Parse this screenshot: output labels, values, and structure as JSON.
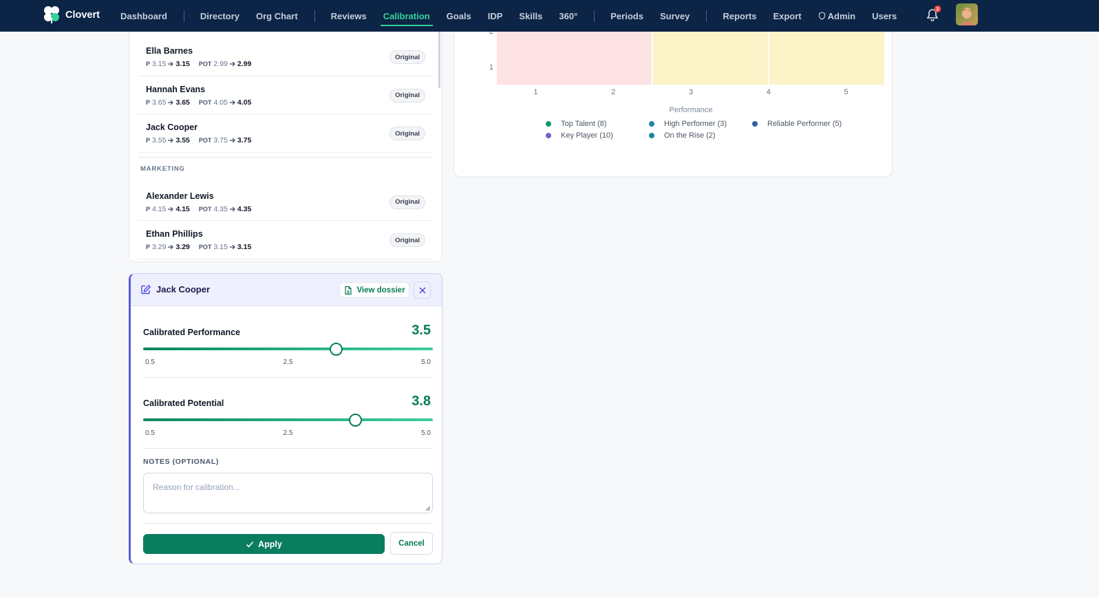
{
  "nav": {
    "brand": "Clovert",
    "groups": [
      [
        {
          "label": "Dashboard"
        }
      ],
      [
        {
          "label": "Directory"
        },
        {
          "label": "Org Chart"
        }
      ],
      [
        {
          "label": "Reviews"
        },
        {
          "label": "Calibration",
          "active": true
        },
        {
          "label": "Goals"
        },
        {
          "label": "IDP"
        },
        {
          "label": "Skills"
        },
        {
          "label": "360°"
        }
      ],
      [
        {
          "label": "Periods"
        },
        {
          "label": "Survey"
        }
      ],
      [
        {
          "label": "Reports"
        },
        {
          "label": "Export"
        },
        {
          "label": "Admin",
          "icon": "shield"
        },
        {
          "label": "Users"
        }
      ]
    ],
    "notification_count": 2
  },
  "employee_list": {
    "groups": [
      {
        "members": [
          {
            "name": "Ella Barnes",
            "perf_label": "P",
            "perf_from": 3.15,
            "perf_to": 3.15,
            "pot_label": "POT",
            "pot_from": 2.99,
            "pot_to": 2.99,
            "status": "Original"
          },
          {
            "name": "Hannah Evans",
            "perf_label": "P",
            "perf_from": 3.65,
            "perf_to": 3.65,
            "pot_label": "POT",
            "pot_from": 4.05,
            "pot_to": 4.05,
            "status": "Original"
          },
          {
            "name": "Jack Cooper",
            "perf_label": "P",
            "perf_from": 3.55,
            "perf_to": 3.55,
            "pot_label": "POT",
            "pot_from": 3.75,
            "pot_to": 3.75,
            "status": "Original"
          }
        ]
      },
      {
        "name": "MARKETING",
        "members": [
          {
            "name": "Alexander Lewis",
            "perf_label": "P",
            "perf_from": 4.15,
            "perf_to": 4.15,
            "pot_label": "POT",
            "pot_from": 4.35,
            "pot_to": 4.35,
            "status": "Original"
          },
          {
            "name": "Ethan Phillips",
            "perf_label": "P",
            "perf_from": 3.29,
            "perf_to": 3.29,
            "pot_label": "POT",
            "pot_from": 3.15,
            "pot_to": 3.15,
            "status": "Original"
          }
        ]
      }
    ]
  },
  "chart_data": {
    "type": "grid",
    "xlabel": "Performance",
    "xlim": [
      0.5,
      5.5
    ],
    "xticks": [
      1,
      2,
      3,
      4,
      5
    ],
    "ylim": [
      0.5,
      2.5
    ],
    "yticks": [
      1,
      2
    ],
    "cells": [
      {
        "x": [
          0.5,
          2.5
        ],
        "y": [
          0.5,
          2.5
        ],
        "color": "#fde2e3"
      },
      {
        "x": [
          2.5,
          4
        ],
        "y": [
          0.5,
          2.5
        ],
        "color": "#fdf3c9"
      },
      {
        "x": [
          4,
          5.5
        ],
        "y": [
          0.5,
          2.5
        ],
        "color": "#fdf3c9"
      }
    ],
    "series": [
      {
        "name": "Top Talent (8)",
        "color": "#10976b"
      },
      {
        "name": "High Performer (3)",
        "color": "#1b87a3"
      },
      {
        "name": "Reliable Performer (5)",
        "color": "#2d5fa6"
      },
      {
        "name": "Key Player (10)",
        "color": "#7a5cc6"
      },
      {
        "name": "On the Rise (2)",
        "color": "#1b87a3"
      }
    ]
  },
  "editor": {
    "title": "Jack Cooper",
    "view_button": "View dossier",
    "sliders": [
      {
        "label": "Calibrated Performance",
        "value": 3.5,
        "ticks": [
          0.5,
          2.5,
          {
            "value": 5,
            "label": "5.0"
          }
        ]
      },
      {
        "label": "Calibrated Potential",
        "value": 3.8,
        "ticks": [
          0.5,
          2.5,
          {
            "value": 5,
            "label": "5.0"
          }
        ]
      }
    ],
    "notes_label": "NOTES (OPTIONAL)",
    "notes_placeholder": "Reason for calibration...",
    "apply": "Apply",
    "cancel": "Cancel"
  }
}
